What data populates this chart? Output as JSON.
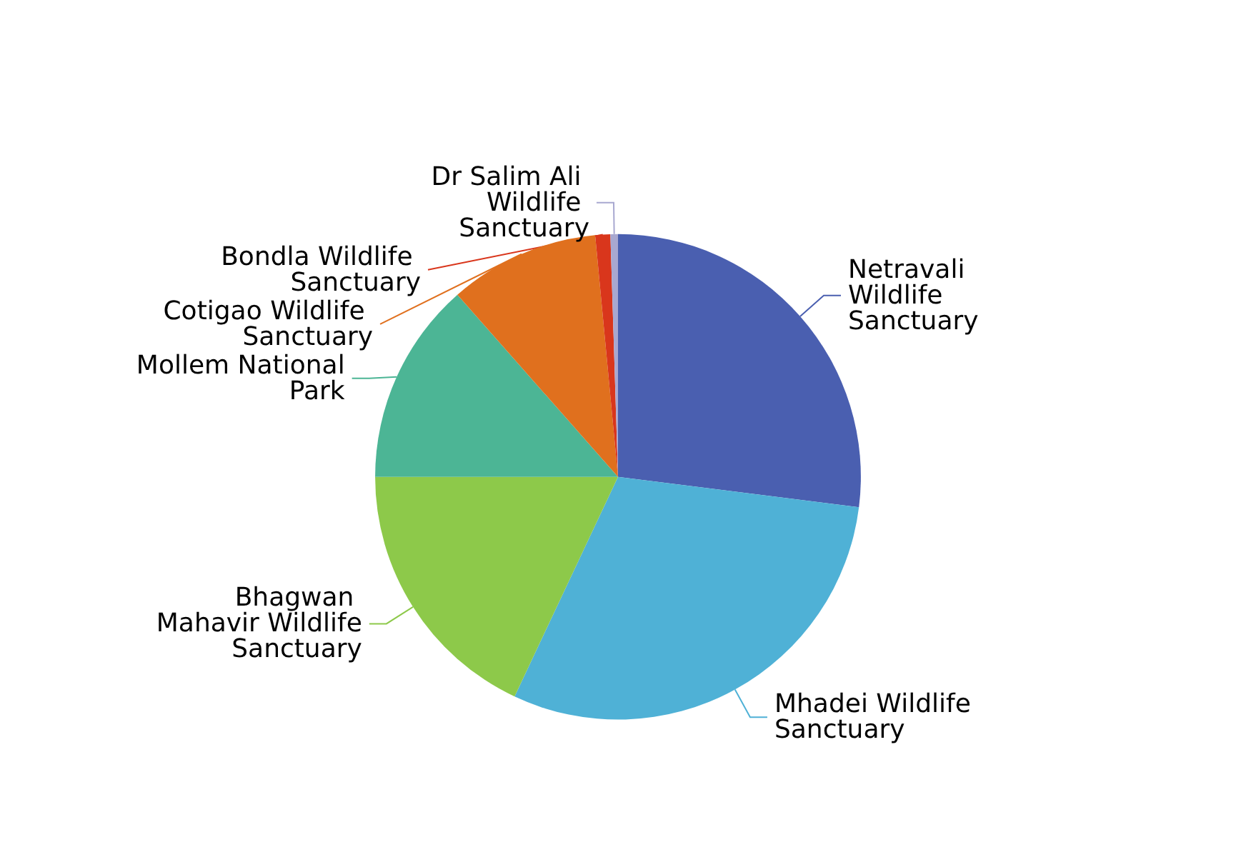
{
  "chart_data": {
    "type": "pie",
    "categories": [
      "Netravali Wildlife Sanctuary",
      "Mhadei Wildlife Sanctuary",
      "Bhagwan Mahavir Wildlife Sanctuary",
      "Mollem National Park",
      "Cotigao Wildlife Sanctuary",
      "Bondla Wildlife Sanctuary",
      "Dr Salim Ali Wildlife Sanctuary"
    ],
    "values": [
      27,
      30,
      18,
      13.5,
      10,
      1,
      0.5
    ],
    "colors": [
      "#4a5fb0",
      "#4fb1d6",
      "#8dc94a",
      "#4cb595",
      "#e0701e",
      "#d9361c",
      "#a8a8d0"
    ],
    "legend": false
  }
}
